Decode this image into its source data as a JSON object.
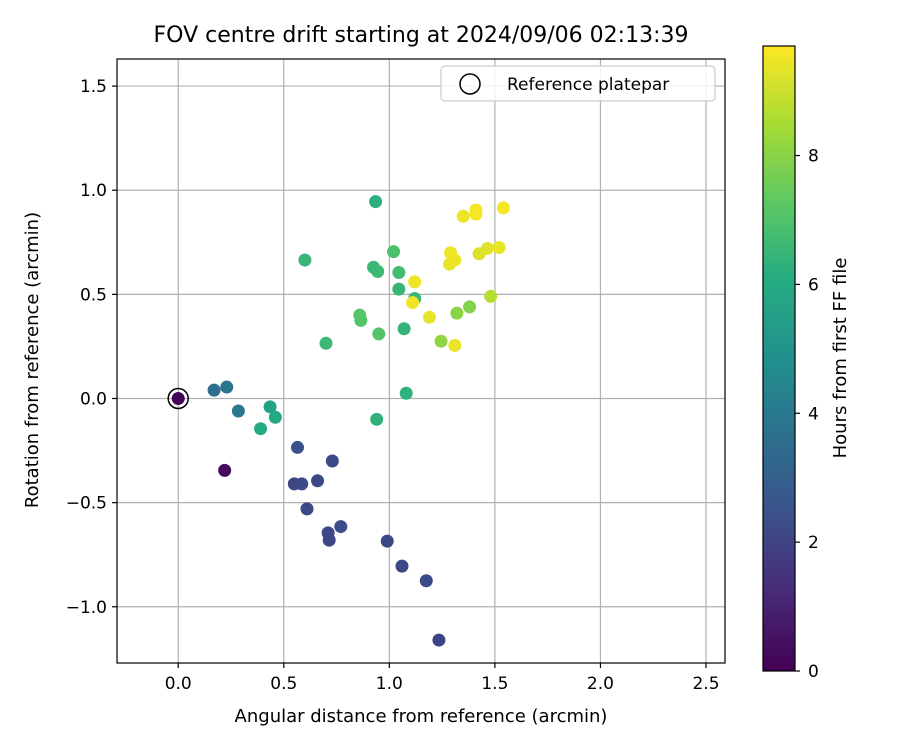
{
  "chart_data": {
    "type": "scatter",
    "title": "FOV centre drift starting at 2024/09/06 02:13:39",
    "xlabel": "Angular distance from reference (arcmin)",
    "ylabel": "Rotation from reference (arcmin)",
    "xlim": [
      -0.29,
      2.59
    ],
    "ylim": [
      -1.27,
      1.63
    ],
    "xticks": [
      0.0,
      0.5,
      1.0,
      1.5,
      2.0,
      2.5
    ],
    "xtick_labels": [
      "0.0",
      "0.5",
      "1.0",
      "1.5",
      "2.0",
      "2.5"
    ],
    "yticks": [
      -1.0,
      -0.5,
      0.0,
      0.5,
      1.0,
      1.5
    ],
    "ytick_labels": [
      "−1.0",
      "−0.5",
      "0.0",
      "0.5",
      "1.0",
      "1.5"
    ],
    "grid": true,
    "legend": {
      "position": "top-right",
      "entries": [
        "Reference platepar"
      ]
    },
    "colorbar": {
      "label": "Hours from first FF file",
      "colormap": "viridis",
      "range": [
        0,
        9.7
      ],
      "ticks": [
        0,
        2,
        4,
        6,
        8
      ],
      "tick_labels": [
        "0",
        "2",
        "4",
        "6",
        "8"
      ]
    },
    "reference_point": {
      "x": 0.0,
      "y": 0.0,
      "label": "Reference platepar"
    },
    "points": [
      {
        "x": 0.0,
        "y": 0.0,
        "hours": 0.05
      },
      {
        "x": 0.22,
        "y": -0.345,
        "hours": 0.3
      },
      {
        "x": 0.55,
        "y": -0.41,
        "hours": 2.1
      },
      {
        "x": 0.585,
        "y": -0.41,
        "hours": 2.2
      },
      {
        "x": 0.61,
        "y": -0.53,
        "hours": 2.1
      },
      {
        "x": 0.565,
        "y": -0.235,
        "hours": 2.4
      },
      {
        "x": 0.66,
        "y": -0.395,
        "hours": 2.2
      },
      {
        "x": 0.73,
        "y": -0.3,
        "hours": 2.2
      },
      {
        "x": 0.71,
        "y": -0.645,
        "hours": 2.1
      },
      {
        "x": 0.715,
        "y": -0.68,
        "hours": 2.1
      },
      {
        "x": 0.77,
        "y": -0.615,
        "hours": 2.3
      },
      {
        "x": 0.99,
        "y": -0.685,
        "hours": 2.1
      },
      {
        "x": 1.06,
        "y": -0.805,
        "hours": 2.1
      },
      {
        "x": 1.175,
        "y": -0.875,
        "hours": 2.2
      },
      {
        "x": 1.235,
        "y": -1.16,
        "hours": 2.0
      },
      {
        "x": 0.17,
        "y": 0.04,
        "hours": 3.6
      },
      {
        "x": 0.23,
        "y": 0.055,
        "hours": 3.8
      },
      {
        "x": 0.285,
        "y": -0.06,
        "hours": 3.9
      },
      {
        "x": 0.435,
        "y": -0.04,
        "hours": 5.6
      },
      {
        "x": 0.46,
        "y": -0.09,
        "hours": 5.9
      },
      {
        "x": 0.39,
        "y": -0.145,
        "hours": 6.0
      },
      {
        "x": 0.6,
        "y": 0.665,
        "hours": 6.5
      },
      {
        "x": 0.7,
        "y": 0.265,
        "hours": 6.6
      },
      {
        "x": 0.935,
        "y": 0.945,
        "hours": 6.2
      },
      {
        "x": 0.925,
        "y": 0.63,
        "hours": 6.6
      },
      {
        "x": 0.945,
        "y": 0.61,
        "hours": 6.6
      },
      {
        "x": 0.94,
        "y": -0.1,
        "hours": 6.3
      },
      {
        "x": 1.02,
        "y": 0.705,
        "hours": 6.9
      },
      {
        "x": 1.045,
        "y": 0.605,
        "hours": 6.7
      },
      {
        "x": 1.045,
        "y": 0.525,
        "hours": 6.5
      },
      {
        "x": 1.07,
        "y": 0.335,
        "hours": 6.4
      },
      {
        "x": 1.08,
        "y": 0.025,
        "hours": 6.3
      },
      {
        "x": 1.12,
        "y": 0.48,
        "hours": 6.5
      },
      {
        "x": 0.86,
        "y": 0.4,
        "hours": 7.1
      },
      {
        "x": 0.865,
        "y": 0.375,
        "hours": 7.1
      },
      {
        "x": 0.95,
        "y": 0.31,
        "hours": 7.1
      },
      {
        "x": 1.245,
        "y": 0.275,
        "hours": 8.1
      },
      {
        "x": 1.32,
        "y": 0.41,
        "hours": 8.0
      },
      {
        "x": 1.38,
        "y": 0.44,
        "hours": 7.9
      },
      {
        "x": 1.48,
        "y": 0.49,
        "hours": 8.7
      },
      {
        "x": 1.11,
        "y": 0.46,
        "hours": 9.5
      },
      {
        "x": 1.12,
        "y": 0.56,
        "hours": 9.5
      },
      {
        "x": 1.19,
        "y": 0.39,
        "hours": 9.4
      },
      {
        "x": 1.31,
        "y": 0.255,
        "hours": 9.4
      },
      {
        "x": 1.285,
        "y": 0.645,
        "hours": 9.4
      },
      {
        "x": 1.29,
        "y": 0.7,
        "hours": 9.5
      },
      {
        "x": 1.31,
        "y": 0.665,
        "hours": 9.5
      },
      {
        "x": 1.35,
        "y": 0.875,
        "hours": 9.5
      },
      {
        "x": 1.41,
        "y": 0.905,
        "hours": 9.6
      },
      {
        "x": 1.41,
        "y": 0.885,
        "hours": 9.6
      },
      {
        "x": 1.425,
        "y": 0.695,
        "hours": 9.2
      },
      {
        "x": 1.465,
        "y": 0.72,
        "hours": 9.3
      },
      {
        "x": 1.52,
        "y": 0.725,
        "hours": 9.4
      },
      {
        "x": 1.54,
        "y": 0.915,
        "hours": 9.6
      }
    ]
  }
}
